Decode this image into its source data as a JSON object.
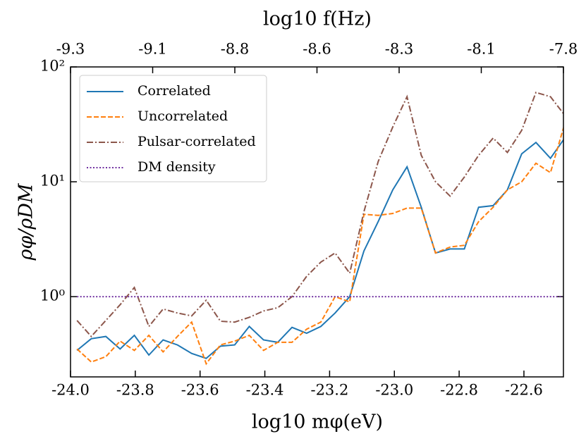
{
  "chart_data": {
    "type": "line",
    "xlabel": "log10 mφ(eV)",
    "ylabel": "ρφ/ρDM",
    "x2label": "log10 f(Hz)",
    "x": [
      -23.98,
      -23.936,
      -23.891,
      -23.847,
      -23.803,
      -23.758,
      -23.714,
      -23.67,
      -23.626,
      -23.581,
      -23.537,
      -23.493,
      -23.448,
      -23.404,
      -23.36,
      -23.316,
      -23.271,
      -23.227,
      -23.183,
      -23.138,
      -23.094,
      -23.05,
      -23.005,
      -22.961,
      -22.917,
      -22.873,
      -22.828,
      -22.784,
      -22.74,
      -22.695,
      -22.651,
      -22.607,
      -22.563,
      -22.518,
      -22.474
    ],
    "xlim": [
      -24.0,
      -22.478
    ],
    "xticks": [
      {
        "value": -24.0,
        "label": "-24.0"
      },
      -23.8,
      -23.6,
      -23.4,
      -23.2,
      {
        "value": -23.0,
        "label": "-23.0"
      },
      -22.8,
      -22.6
    ],
    "x2lim": [
      -9.3,
      -7.8
    ],
    "x2ticks": [
      -9.3,
      {
        "value": -9.05,
        "label": "-9.1"
      },
      -8.8,
      {
        "value": -8.55,
        "label": "-8.6"
      },
      -8.3,
      {
        "value": -8.05,
        "label": "-8.1"
      },
      -7.8
    ],
    "ylim": [
      0.2,
      100
    ],
    "yticks": [
      {
        "value": 1,
        "label": "10⁰"
      },
      {
        "value": 10,
        "label": "10¹"
      },
      {
        "value": 100,
        "label": "10²"
      }
    ],
    "log_y": true,
    "legend": "upper left",
    "series": [
      {
        "name": "Correlated",
        "color": "#1f77b4",
        "dash": "solid",
        "values": [
          0.34,
          0.43,
          0.45,
          0.35,
          0.46,
          0.31,
          0.42,
          0.38,
          0.32,
          0.29,
          0.37,
          0.38,
          0.55,
          0.42,
          0.4,
          0.54,
          0.48,
          0.55,
          0.72,
          1.0,
          2.5,
          4.5,
          8.5,
          13.5,
          6,
          2.4,
          2.6,
          2.6,
          6,
          6.2,
          8.5,
          17.5,
          22,
          16,
          24
        ]
      },
      {
        "name": "Uncorrelated",
        "color": "#ff7f0e",
        "dash": "dashed",
        "values": [
          0.35,
          0.27,
          0.3,
          0.41,
          0.34,
          0.46,
          0.33,
          0.45,
          0.6,
          0.26,
          0.38,
          0.41,
          0.46,
          0.34,
          0.4,
          0.4,
          0.52,
          0.6,
          1.0,
          0.9,
          5.2,
          5.1,
          5.3,
          5.9,
          5.9,
          2.4,
          2.7,
          2.8,
          4.5,
          6.0,
          8.5,
          10,
          14.5,
          12,
          32
        ]
      },
      {
        "name": "Pulsar-correlated",
        "color": "#8c564b",
        "dash": "dashdot",
        "values": [
          0.62,
          0.45,
          0.62,
          0.85,
          1.2,
          0.55,
          0.78,
          0.72,
          0.68,
          0.93,
          0.61,
          0.6,
          0.66,
          0.75,
          0.8,
          1.0,
          1.5,
          2.0,
          2.4,
          1.6,
          5.5,
          15,
          30,
          55,
          17,
          10,
          7.5,
          11,
          17,
          24,
          18,
          28,
          60,
          55,
          38
        ]
      },
      {
        "name": "DM density",
        "color": "#7030a0",
        "dash": "dotted",
        "values": [
          1,
          1,
          1,
          1,
          1,
          1,
          1,
          1,
          1,
          1,
          1,
          1,
          1,
          1,
          1,
          1,
          1,
          1,
          1,
          1,
          1,
          1,
          1,
          1,
          1,
          1,
          1,
          1,
          1,
          1,
          1,
          1,
          1,
          1,
          1
        ]
      }
    ]
  }
}
